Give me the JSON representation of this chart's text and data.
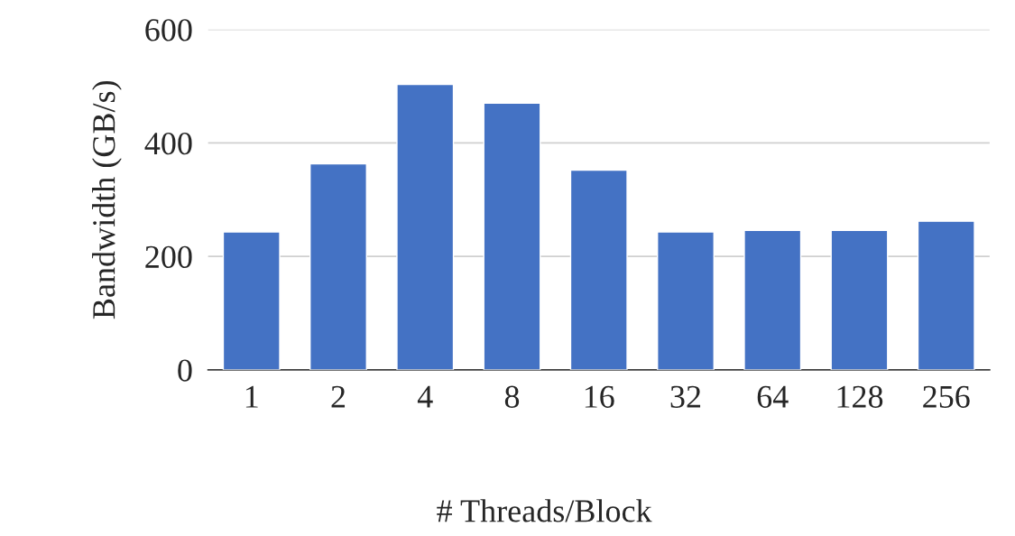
{
  "chart_data": {
    "type": "bar",
    "xlabel": "# Threads/Block",
    "ylabel": "Bandwidth (GB/s)",
    "categories": [
      "1",
      "2",
      "4",
      "8",
      "16",
      "32",
      "64",
      "128",
      "256"
    ],
    "values": [
      243,
      363,
      503,
      470,
      352,
      243,
      246,
      246,
      262
    ],
    "color": "#4472c4",
    "ylim": [
      0,
      600
    ],
    "yticks": [
      0,
      200,
      400,
      600
    ],
    "grid": "y"
  }
}
